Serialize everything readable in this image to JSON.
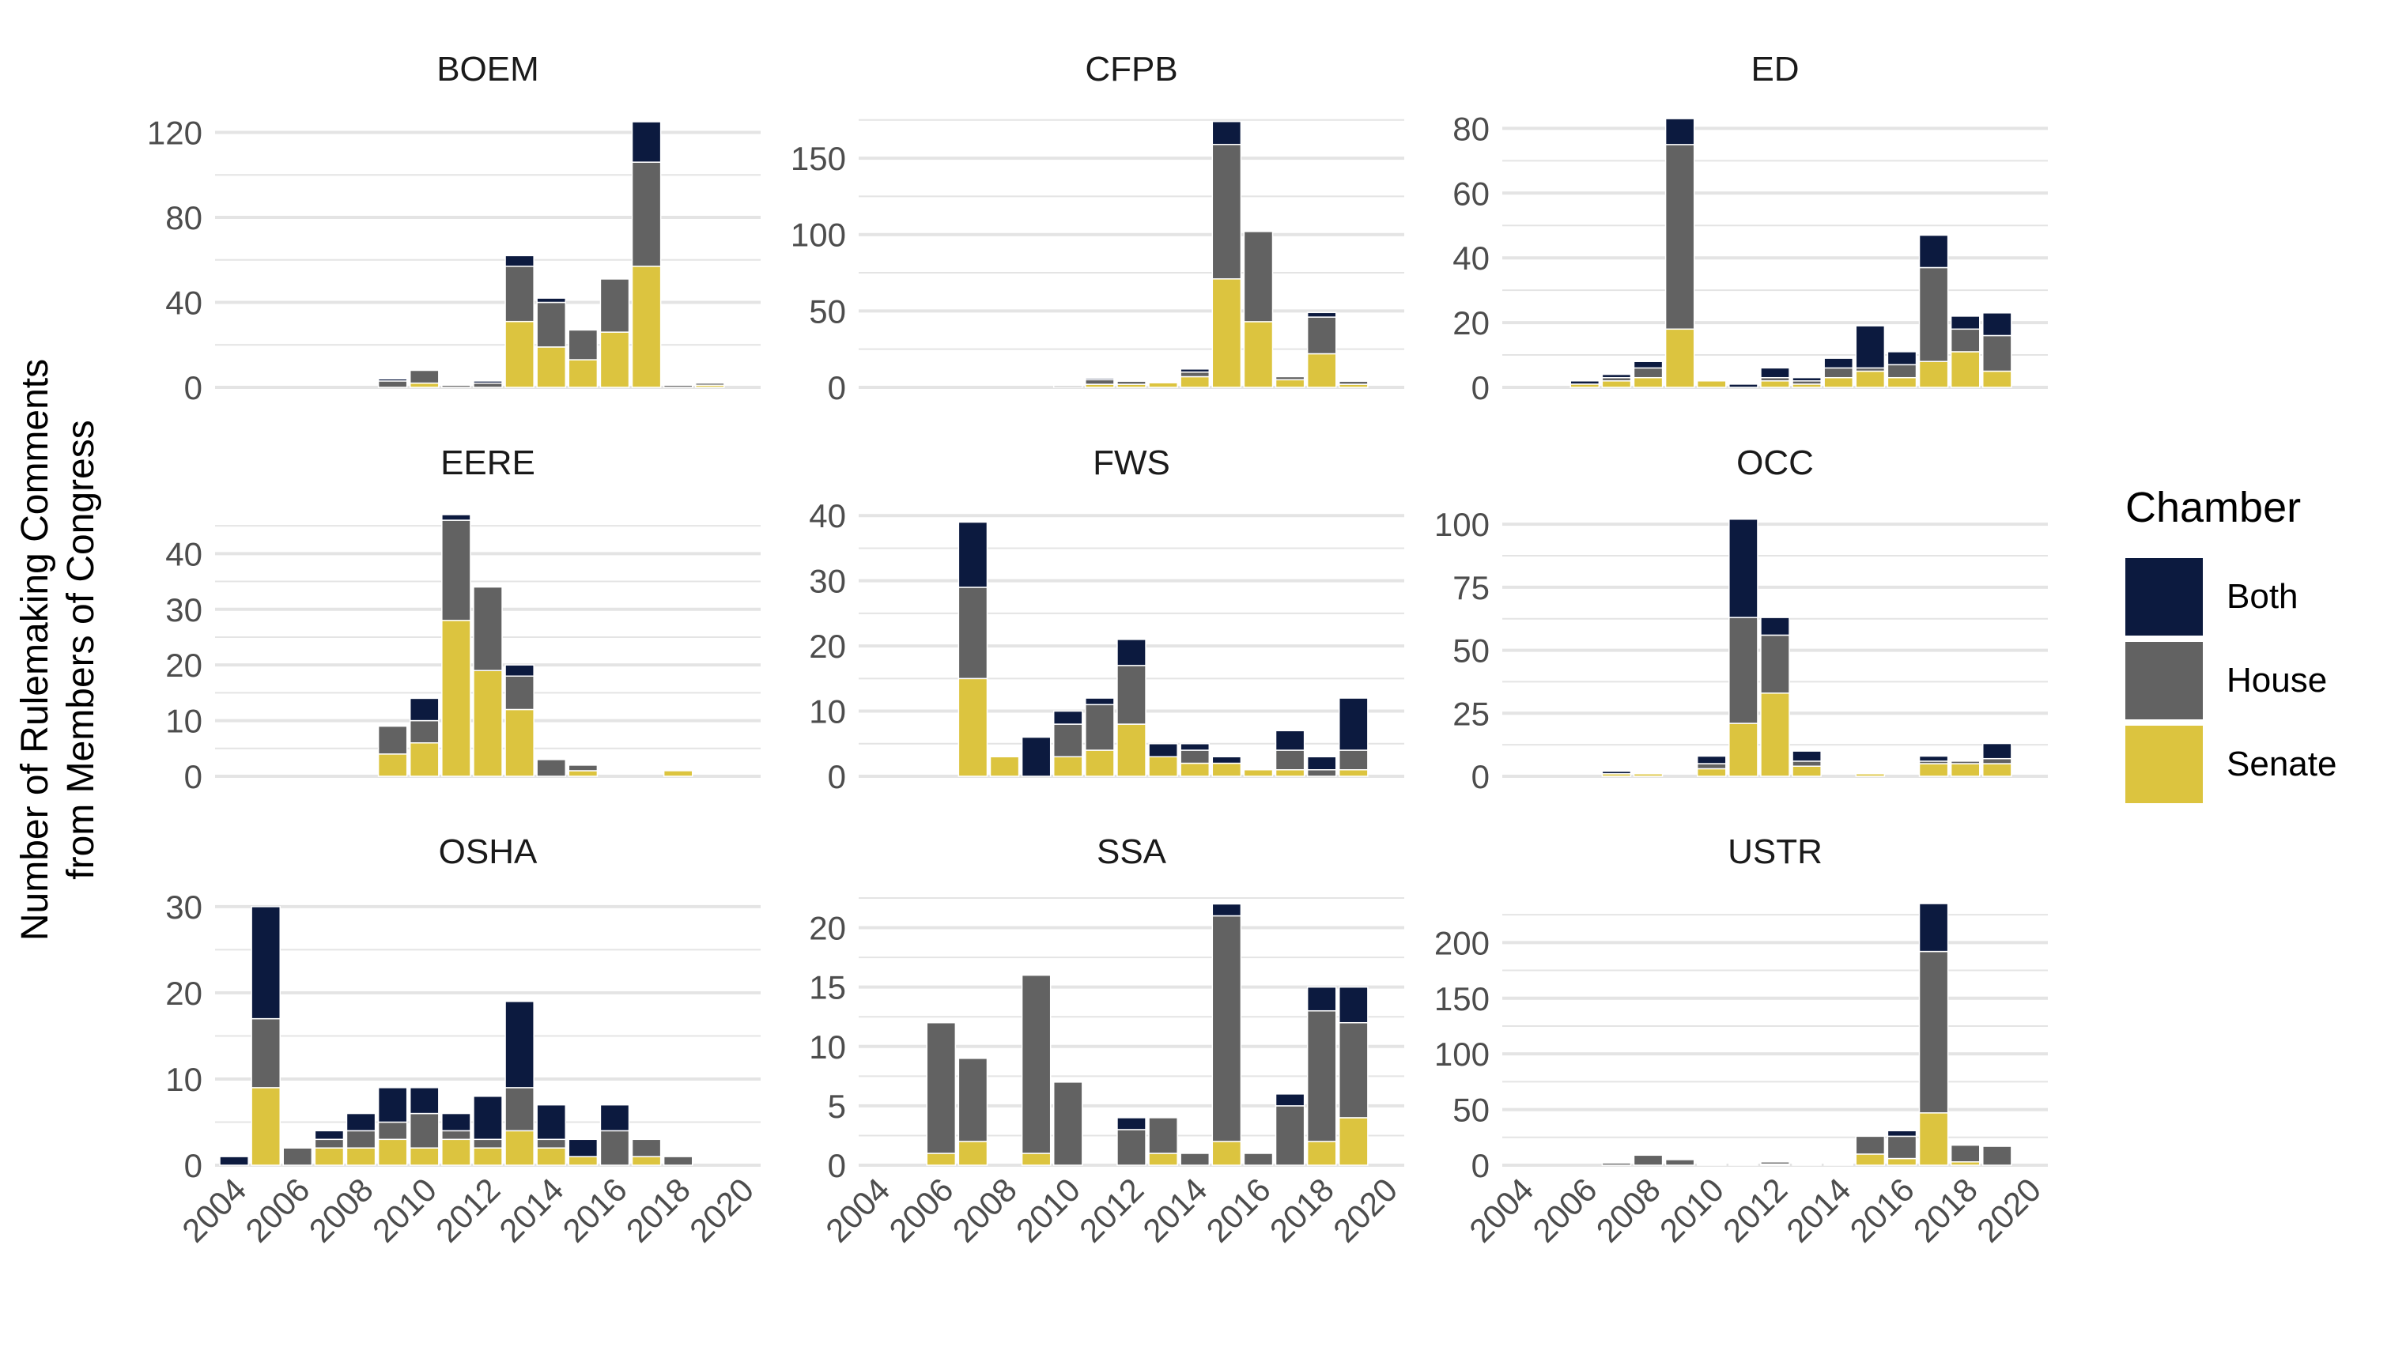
{
  "chart_data": {
    "type": "bar",
    "stacked": true,
    "ylabel_lines": [
      "Number of Rulemaking Comments",
      "from Members of Congress"
    ],
    "xlabel": "",
    "legend": {
      "title": "Chamber",
      "placement": "right",
      "entries": [
        {
          "name": "Both",
          "color": "#0c1a3f"
        },
        {
          "name": "House",
          "color": "#626262"
        },
        {
          "name": "Senate",
          "color": "#dcc43f"
        }
      ]
    },
    "colors": {
      "Both": "#0c1a3f",
      "House": "#626262",
      "Senate": "#dcc43f",
      "grid": "#e4e4e4",
      "text": "#4d4d4d",
      "title": "#1a1a1a"
    },
    "grid": true,
    "x_ticks": [
      "2004",
      "2006",
      "2008",
      "2010",
      "2012",
      "2014",
      "2016",
      "2018",
      "2020"
    ],
    "xlim": [
      2003.4,
      2020.6
    ],
    "series_order": [
      "Senate",
      "House",
      "Both"
    ],
    "panels": [
      {
        "title": "BOEM",
        "ylim": [
          0,
          128
        ],
        "y_ticks": [
          0,
          40,
          80,
          120
        ],
        "bars": [
          {
            "year": 2009,
            "Senate": 0,
            "House": 3,
            "Both": 1
          },
          {
            "year": 2010,
            "Senate": 2,
            "House": 6,
            "Both": 0
          },
          {
            "year": 2011,
            "Senate": 0,
            "House": 1,
            "Both": 0
          },
          {
            "year": 2012,
            "Senate": 0,
            "House": 2,
            "Both": 1
          },
          {
            "year": 2013,
            "Senate": 31,
            "House": 26,
            "Both": 5
          },
          {
            "year": 2014,
            "Senate": 19,
            "House": 21,
            "Both": 2
          },
          {
            "year": 2015,
            "Senate": 13,
            "House": 14,
            "Both": 0
          },
          {
            "year": 2016,
            "Senate": 26,
            "House": 25,
            "Both": 0
          },
          {
            "year": 2017,
            "Senate": 57,
            "House": 49,
            "Both": 19
          },
          {
            "year": 2018,
            "Senate": 0,
            "House": 1,
            "Both": 0
          },
          {
            "year": 2019,
            "Senate": 1,
            "House": 1,
            "Both": 0
          }
        ]
      },
      {
        "title": "CFPB",
        "ylim": [
          0,
          178
        ],
        "y_ticks": [
          0,
          50,
          100,
          150
        ],
        "bars": [
          {
            "year": 2010,
            "Senate": 0,
            "House": 1,
            "Both": 0
          },
          {
            "year": 2011,
            "Senate": 2,
            "House": 3,
            "Both": 1
          },
          {
            "year": 2012,
            "Senate": 2,
            "House": 2,
            "Both": 0
          },
          {
            "year": 2013,
            "Senate": 3,
            "House": 0,
            "Both": 0
          },
          {
            "year": 2014,
            "Senate": 7,
            "House": 3,
            "Both": 2
          },
          {
            "year": 2015,
            "Senate": 71,
            "House": 88,
            "Both": 15
          },
          {
            "year": 2016,
            "Senate": 43,
            "House": 59,
            "Both": 0
          },
          {
            "year": 2017,
            "Senate": 5,
            "House": 2,
            "Both": 0
          },
          {
            "year": 2018,
            "Senate": 22,
            "House": 24,
            "Both": 3
          },
          {
            "year": 2019,
            "Senate": 2,
            "House": 2,
            "Both": 0
          }
        ]
      },
      {
        "title": "ED",
        "ylim": [
          0,
          84
        ],
        "y_ticks": [
          0,
          20,
          40,
          60,
          80
        ],
        "bars": [
          {
            "year": 2006,
            "Senate": 1,
            "House": 0,
            "Both": 1
          },
          {
            "year": 2007,
            "Senate": 2,
            "House": 1,
            "Both": 1
          },
          {
            "year": 2008,
            "Senate": 3,
            "House": 3,
            "Both": 2
          },
          {
            "year": 2009,
            "Senate": 18,
            "House": 57,
            "Both": 8
          },
          {
            "year": 2010,
            "Senate": 2,
            "House": 0,
            "Both": 0
          },
          {
            "year": 2011,
            "Senate": 0,
            "House": 0,
            "Both": 1
          },
          {
            "year": 2012,
            "Senate": 2,
            "House": 1,
            "Both": 3
          },
          {
            "year": 2013,
            "Senate": 1,
            "House": 1,
            "Both": 1
          },
          {
            "year": 2014,
            "Senate": 3,
            "House": 3,
            "Both": 3
          },
          {
            "year": 2015,
            "Senate": 5,
            "House": 1,
            "Both": 13
          },
          {
            "year": 2016,
            "Senate": 3,
            "House": 4,
            "Both": 4
          },
          {
            "year": 2017,
            "Senate": 8,
            "House": 29,
            "Both": 10
          },
          {
            "year": 2018,
            "Senate": 11,
            "House": 7,
            "Both": 4
          },
          {
            "year": 2019,
            "Senate": 5,
            "House": 11,
            "Both": 7
          }
        ]
      },
      {
        "title": "EERE",
        "ylim": [
          0,
          48
        ],
        "y_ticks": [
          0,
          10,
          20,
          30,
          40
        ],
        "bars": [
          {
            "year": 2009,
            "Senate": 4,
            "House": 5,
            "Both": 0
          },
          {
            "year": 2010,
            "Senate": 6,
            "House": 4,
            "Both": 4
          },
          {
            "year": 2011,
            "Senate": 28,
            "House": 18,
            "Both": 1
          },
          {
            "year": 2012,
            "Senate": 19,
            "House": 15,
            "Both": 0
          },
          {
            "year": 2013,
            "Senate": 12,
            "House": 6,
            "Both": 2
          },
          {
            "year": 2014,
            "Senate": 0,
            "House": 3,
            "Both": 0
          },
          {
            "year": 2015,
            "Senate": 1,
            "House": 1,
            "Both": 0
          },
          {
            "year": 2018,
            "Senate": 1,
            "House": 0,
            "Both": 0
          }
        ]
      },
      {
        "title": "FWS",
        "ylim": [
          0,
          41
        ],
        "y_ticks": [
          0,
          10,
          20,
          30,
          40
        ],
        "bars": [
          {
            "year": 2007,
            "Senate": 15,
            "House": 14,
            "Both": 10
          },
          {
            "year": 2008,
            "Senate": 3,
            "House": 0,
            "Both": 0
          },
          {
            "year": 2009,
            "Senate": 0,
            "House": 0,
            "Both": 6
          },
          {
            "year": 2010,
            "Senate": 3,
            "House": 5,
            "Both": 2
          },
          {
            "year": 2011,
            "Senate": 4,
            "House": 7,
            "Both": 1
          },
          {
            "year": 2012,
            "Senate": 8,
            "House": 9,
            "Both": 4
          },
          {
            "year": 2013,
            "Senate": 3,
            "House": 0,
            "Both": 2
          },
          {
            "year": 2014,
            "Senate": 2,
            "House": 2,
            "Both": 1
          },
          {
            "year": 2015,
            "Senate": 2,
            "House": 0,
            "Both": 1
          },
          {
            "year": 2016,
            "Senate": 1,
            "House": 0,
            "Both": 0
          },
          {
            "year": 2017,
            "Senate": 1,
            "House": 3,
            "Both": 3
          },
          {
            "year": 2018,
            "Senate": 0,
            "House": 1,
            "Both": 2
          },
          {
            "year": 2019,
            "Senate": 1,
            "House": 3,
            "Both": 8
          }
        ]
      },
      {
        "title": "OCC",
        "ylim": [
          0,
          106
        ],
        "y_ticks": [
          0,
          25,
          50,
          75,
          100
        ],
        "bars": [
          {
            "year": 2007,
            "Senate": 1,
            "House": 0,
            "Both": 1
          },
          {
            "year": 2008,
            "Senate": 1,
            "House": 0,
            "Both": 0
          },
          {
            "year": 2010,
            "Senate": 3,
            "House": 2,
            "Both": 3
          },
          {
            "year": 2011,
            "Senate": 21,
            "House": 42,
            "Both": 39
          },
          {
            "year": 2012,
            "Senate": 33,
            "House": 23,
            "Both": 7
          },
          {
            "year": 2013,
            "Senate": 4,
            "House": 2,
            "Both": 4
          },
          {
            "year": 2015,
            "Senate": 1,
            "House": 0,
            "Both": 0
          },
          {
            "year": 2017,
            "Senate": 5,
            "House": 1,
            "Both": 2
          },
          {
            "year": 2018,
            "Senate": 5,
            "House": 1,
            "Both": 0
          },
          {
            "year": 2019,
            "Senate": 5,
            "House": 2,
            "Both": 6
          }
        ]
      },
      {
        "title": "OSHA",
        "ylim": [
          0,
          31
        ],
        "y_ticks": [
          0,
          10,
          20,
          30
        ],
        "bars": [
          {
            "year": 2004,
            "Senate": 0,
            "House": 0,
            "Both": 1
          },
          {
            "year": 2005,
            "Senate": 9,
            "House": 8,
            "Both": 13
          },
          {
            "year": 2006,
            "Senate": 0,
            "House": 2,
            "Both": 0
          },
          {
            "year": 2007,
            "Senate": 2,
            "House": 1,
            "Both": 1
          },
          {
            "year": 2008,
            "Senate": 2,
            "House": 2,
            "Both": 2
          },
          {
            "year": 2009,
            "Senate": 3,
            "House": 2,
            "Both": 4
          },
          {
            "year": 2010,
            "Senate": 2,
            "House": 4,
            "Both": 3
          },
          {
            "year": 2011,
            "Senate": 3,
            "House": 1,
            "Both": 2
          },
          {
            "year": 2012,
            "Senate": 2,
            "House": 1,
            "Both": 5
          },
          {
            "year": 2013,
            "Senate": 4,
            "House": 5,
            "Both": 10
          },
          {
            "year": 2014,
            "Senate": 2,
            "House": 1,
            "Both": 4
          },
          {
            "year": 2015,
            "Senate": 1,
            "House": 0,
            "Both": 2
          },
          {
            "year": 2016,
            "Senate": 0,
            "House": 4,
            "Both": 3
          },
          {
            "year": 2017,
            "Senate": 1,
            "House": 2,
            "Both": 0
          },
          {
            "year": 2018,
            "Senate": 0,
            "House": 1,
            "Both": 0
          }
        ]
      },
      {
        "title": "SSA",
        "ylim": [
          0,
          22.5
        ],
        "y_ticks": [
          0,
          5,
          10,
          15,
          20
        ],
        "bars": [
          {
            "year": 2006,
            "Senate": 1,
            "House": 11,
            "Both": 0
          },
          {
            "year": 2007,
            "Senate": 2,
            "House": 7,
            "Both": 0
          },
          {
            "year": 2009,
            "Senate": 1,
            "House": 15,
            "Both": 0
          },
          {
            "year": 2010,
            "Senate": 0,
            "House": 7,
            "Both": 0
          },
          {
            "year": 2012,
            "Senate": 0,
            "House": 3,
            "Both": 1
          },
          {
            "year": 2013,
            "Senate": 1,
            "House": 3,
            "Both": 0
          },
          {
            "year": 2014,
            "Senate": 0,
            "House": 1,
            "Both": 0
          },
          {
            "year": 2015,
            "Senate": 2,
            "House": 19,
            "Both": 1
          },
          {
            "year": 2016,
            "Senate": 0,
            "House": 1,
            "Both": 0
          },
          {
            "year": 2017,
            "Senate": 0,
            "House": 5,
            "Both": 1
          },
          {
            "year": 2018,
            "Senate": 2,
            "House": 11,
            "Both": 2
          },
          {
            "year": 2019,
            "Senate": 4,
            "House": 8,
            "Both": 3
          }
        ]
      },
      {
        "title": "USTR",
        "ylim": [
          0,
          240
        ],
        "y_ticks": [
          0,
          50,
          100,
          150,
          200
        ],
        "bars": [
          {
            "year": 2007,
            "Senate": 0,
            "House": 2,
            "Both": 0
          },
          {
            "year": 2008,
            "Senate": 0,
            "House": 9,
            "Both": 0
          },
          {
            "year": 2009,
            "Senate": 0,
            "House": 5,
            "Both": 0
          },
          {
            "year": 2010,
            "Senate": 0,
            "House": 1,
            "Both": 0
          },
          {
            "year": 2011,
            "Senate": 1,
            "House": 0,
            "Both": 0
          },
          {
            "year": 2012,
            "Senate": 1,
            "House": 2,
            "Both": 1
          },
          {
            "year": 2013,
            "Senate": 0,
            "House": 1,
            "Both": 1
          },
          {
            "year": 2014,
            "Senate": 0,
            "House": 1,
            "Both": 0
          },
          {
            "year": 2015,
            "Senate": 10,
            "House": 16,
            "Both": 0
          },
          {
            "year": 2016,
            "Senate": 6,
            "House": 20,
            "Both": 5
          },
          {
            "year": 2017,
            "Senate": 47,
            "House": 145,
            "Both": 43
          },
          {
            "year": 2018,
            "Senate": 3,
            "House": 15,
            "Both": 0
          },
          {
            "year": 2019,
            "Senate": 0,
            "House": 17,
            "Both": 0
          }
        ]
      }
    ]
  }
}
